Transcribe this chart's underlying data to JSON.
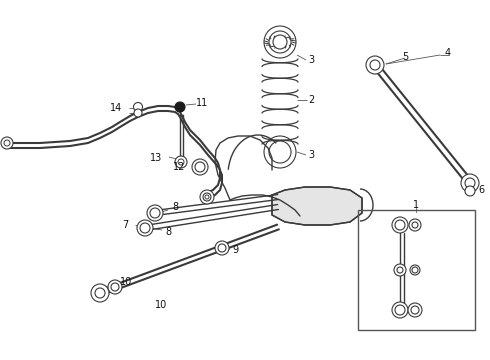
{
  "bg_color": "#ffffff",
  "lc": "#3a3a3a",
  "lc2": "#555555",
  "gray": "#888888",
  "figsize": [
    4.9,
    3.6
  ],
  "dpi": 100
}
